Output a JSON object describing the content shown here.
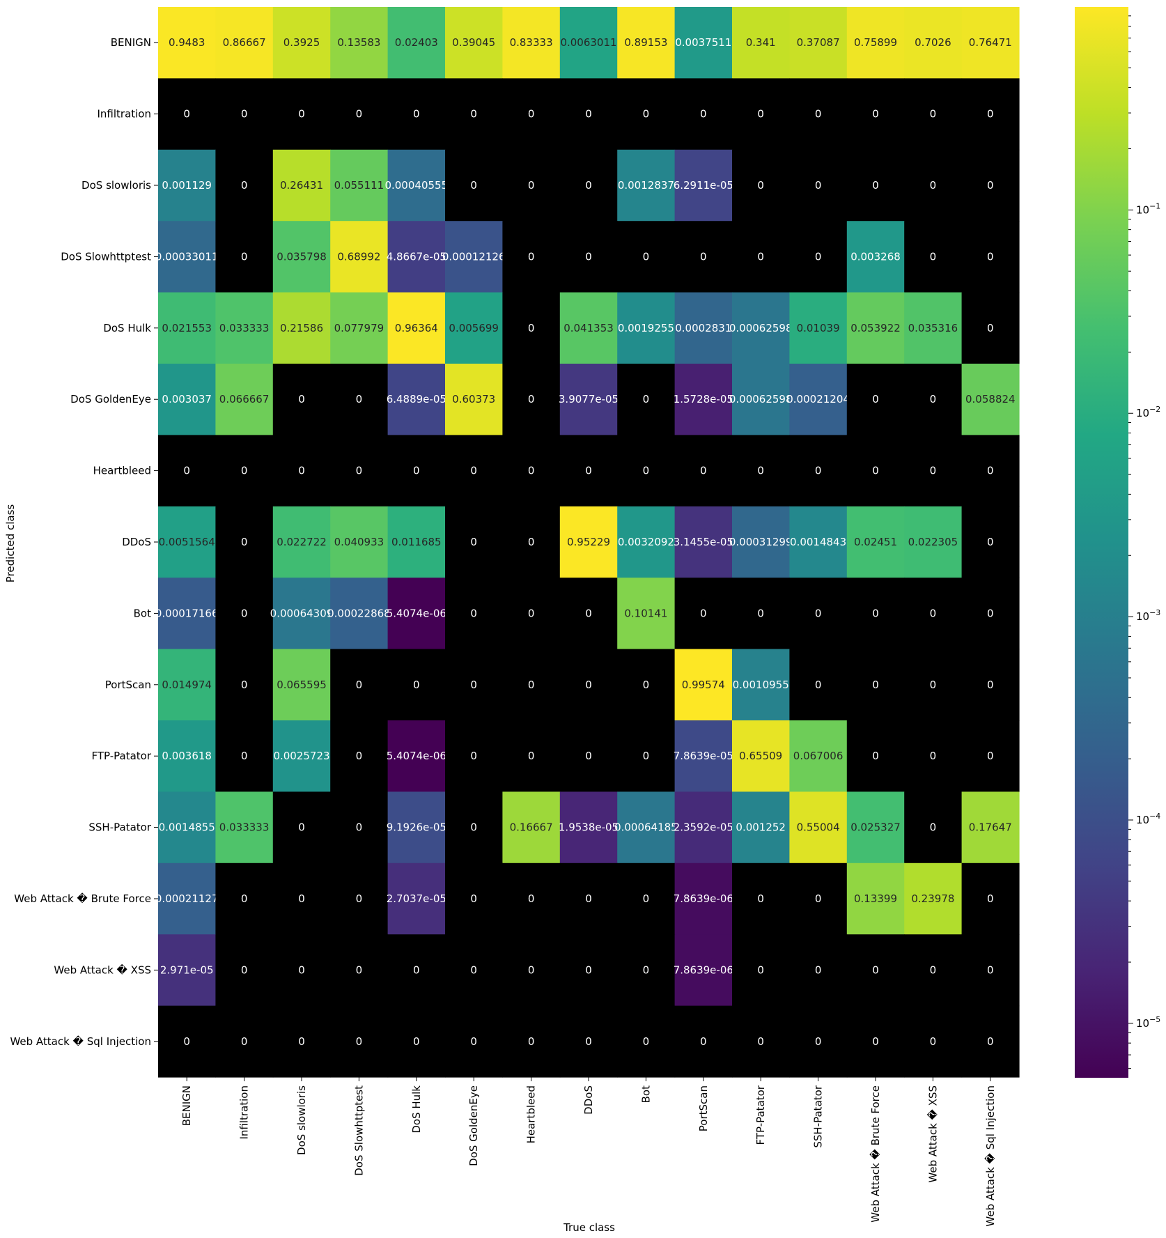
{
  "chart_data": {
    "type": "heatmap",
    "xlabel": "True class",
    "ylabel": "Predicted class",
    "colormap": "viridis",
    "color_scale": "log",
    "zero_color": "#000000",
    "colorbar": {
      "range": [
        5.4e-06,
        0.99574
      ],
      "major_ticks": [
        {
          "value": 0.1,
          "base": "10",
          "exp": "−1"
        },
        {
          "value": 0.01,
          "base": "10",
          "exp": "−2"
        },
        {
          "value": 0.001,
          "base": "10",
          "exp": "−3"
        },
        {
          "value": 0.0001,
          "base": "10",
          "exp": "−4"
        },
        {
          "value": 1e-05,
          "base": "10",
          "exp": "−5"
        }
      ]
    },
    "x_categories": [
      "BENIGN",
      "Infiltration",
      "DoS slowloris",
      "DoS Slowhttptest",
      "DoS Hulk",
      "DoS GoldenEye",
      "Heartbleed",
      "DDoS",
      "Bot",
      "PortScan",
      "FTP-Patator",
      "SSH-Patator",
      "Web Attack � Brute Force",
      "Web Attack � XSS",
      "Web Attack � Sql Injection"
    ],
    "y_categories": [
      "BENIGN",
      "Infiltration",
      "DoS slowloris",
      "DoS Slowhttptest",
      "DoS Hulk",
      "DoS GoldenEye",
      "Heartbleed",
      "DDoS",
      "Bot",
      "PortScan",
      "FTP-Patator",
      "SSH-Patator",
      "Web Attack � Brute Force",
      "Web Attack � XSS",
      "Web Attack � Sql Injection"
    ],
    "cells": [
      [
        "0.9483",
        "0.86667",
        "0.3925",
        "0.13583",
        "0.02403",
        "0.39045",
        "0.83333",
        "0.0063011",
        "0.89153",
        "0.0037511",
        "0.341",
        "0.37087",
        "0.75899",
        "0.7026",
        "0.76471"
      ],
      [
        "0",
        "0",
        "0",
        "0",
        "0",
        "0",
        "0",
        "0",
        "0",
        "0",
        "0",
        "0",
        "0",
        "0",
        "0"
      ],
      [
        "0.001129",
        "0",
        "0.26431",
        "0.055111",
        "0.00040555",
        "0",
        "0",
        "0",
        "0.0012837",
        "6.2911e-05",
        "0",
        "0",
        "0",
        "0",
        "0"
      ],
      [
        "0.00033011",
        "0",
        "0.035798",
        "0.68992",
        "4.8667e-05",
        "0.00012126",
        "0",
        "0",
        "0",
        "0",
        "0",
        "0",
        "0.003268",
        "0",
        "0"
      ],
      [
        "0.021553",
        "0.033333",
        "0.21586",
        "0.077979",
        "0.96364",
        "0.005699",
        "0",
        "0.041353",
        "0.0019255",
        "0.0002831",
        "0.00062598",
        "0.01039",
        "0.053922",
        "0.035316",
        "0"
      ],
      [
        "0.003037",
        "0.066667",
        "0",
        "0",
        "6.4889e-05",
        "0.60373",
        "0",
        "3.9077e-05",
        "0",
        "1.5728e-05",
        "0.00062598",
        "0.00021204",
        "0",
        "0",
        "0.058824"
      ],
      [
        "0",
        "0",
        "0",
        "0",
        "0",
        "0",
        "0",
        "0",
        "0",
        "0",
        "0",
        "0",
        "0",
        "0",
        "0"
      ],
      [
        "0.0051564",
        "0",
        "0.022722",
        "0.040933",
        "0.011685",
        "0",
        "0",
        "0.95229",
        "0.0032092",
        "3.1455e-05",
        "0.00031299",
        "0.0014843",
        "0.02451",
        "0.022305",
        "0"
      ],
      [
        "0.00017166",
        "0",
        "0.00064309",
        "0.00022868",
        "5.4074e-06",
        "0",
        "0",
        "0",
        "0.10141",
        "0",
        "0",
        "0",
        "0",
        "0",
        "0"
      ],
      [
        "0.014974",
        "0",
        "0.065595",
        "0",
        "0",
        "0",
        "0",
        "0",
        "0",
        "0.99574",
        "0.0010955",
        "0",
        "0",
        "0",
        "0"
      ],
      [
        "0.003618",
        "0",
        "0.0025723",
        "0",
        "5.4074e-06",
        "0",
        "0",
        "0",
        "0",
        "7.8639e-05",
        "0.65509",
        "0.067006",
        "0",
        "0",
        "0"
      ],
      [
        "0.0014855",
        "0.033333",
        "0",
        "0",
        "9.1926e-05",
        "0",
        "0.16667",
        "1.9538e-05",
        "0.00064185",
        "2.3592e-05",
        "0.001252",
        "0.55004",
        "0.025327",
        "0",
        "0.17647"
      ],
      [
        "0.00021127",
        "0",
        "0",
        "0",
        "2.7037e-05",
        "0",
        "0",
        "0",
        "0",
        "7.8639e-06",
        "0",
        "0",
        "0.13399",
        "0.23978",
        "0"
      ],
      [
        "2.971e-05",
        "0",
        "0",
        "0",
        "0",
        "0",
        "0",
        "0",
        "0",
        "7.8639e-06",
        "0",
        "0",
        "0",
        "0",
        "0"
      ],
      [
        "0",
        "0",
        "0",
        "0",
        "0",
        "0",
        "0",
        "0",
        "0",
        "0",
        "0",
        "0",
        "0",
        "0",
        "0"
      ]
    ]
  }
}
